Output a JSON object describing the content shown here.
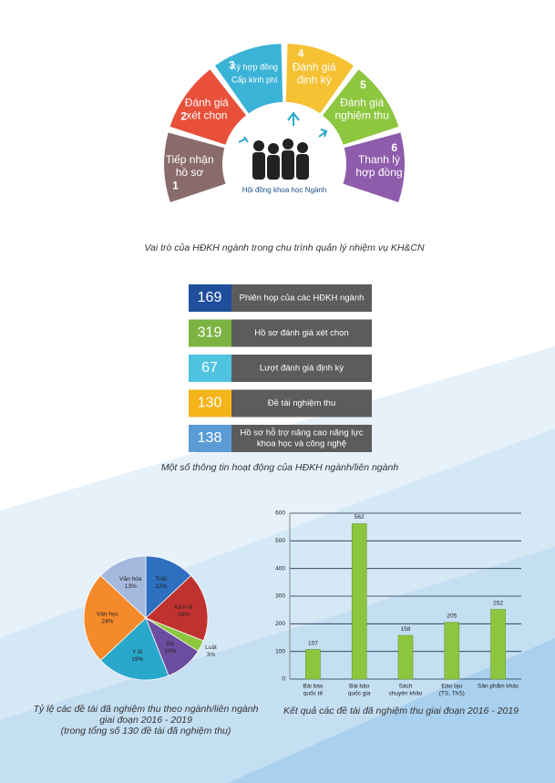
{
  "cycle": {
    "center": "Hội đồng khoa học Ngành",
    "steps": [
      {
        "number": "1",
        "lines": [
          "Tiếp nhận",
          "hồ sơ"
        ]
      },
      {
        "number": "2",
        "lines": [
          "Đánh giá",
          "xét chọn"
        ]
      },
      {
        "number": "3",
        "lines": [
          "Ký hợp đồng",
          "Cấp kinh phí"
        ]
      },
      {
        "number": "4",
        "lines": [
          "Đánh giá",
          "định kỳ"
        ]
      },
      {
        "number": "5",
        "lines": [
          "Đánh giá",
          "nghiệm thu"
        ]
      },
      {
        "number": "6",
        "lines": [
          "Thanh lý",
          "hợp đồng"
        ]
      }
    ],
    "caption": "Vai trò của HĐKH ngành trong chu trình quản lý nhiệm vụ KH&CN"
  },
  "stats": {
    "rows": [
      {
        "value": "169",
        "lines": [
          "Phiên họp của các HĐKH ngành"
        ]
      },
      {
        "value": "319",
        "lines": [
          "Hồ sơ đánh giá xét chọn"
        ]
      },
      {
        "value": "67",
        "lines": [
          "Lượt đánh giá định kỳ"
        ]
      },
      {
        "value": "130",
        "lines": [
          "Đề tài nghiệm thu"
        ]
      },
      {
        "value": "138",
        "lines": [
          "Hồ sơ hỗ trợ nâng cao năng lực",
          "khoa học và công nghệ"
        ]
      }
    ],
    "caption": "Một số thông tin hoạt động của HĐKH ngành/liên ngành"
  },
  "chart_data": [
    {
      "type": "pie",
      "caption": [
        "Tỷ lệ các đề tài đã nghiệm thu theo ngành/liên ngành",
        "giai đoạn 2016 - 2019",
        "(trong tổng số 130 đề tài đã nghiệm thu)"
      ],
      "categories": [
        "Triết",
        "Kinh tế",
        "Luật",
        "Sử",
        "Y tế",
        "Văn học",
        "Văn hóa"
      ],
      "values": [
        13,
        18,
        3,
        10,
        19,
        24,
        13
      ],
      "value_labels": [
        "13%",
        "18%",
        "3%",
        "10%",
        "19%",
        "24%",
        "13%"
      ],
      "colors": [
        "#2e6fc0",
        "#c0322f",
        "#8dc63f",
        "#6b4c9e",
        "#2aa8cc",
        "#f58a2a",
        "#a4b9de"
      ]
    },
    {
      "type": "bar",
      "caption": "Kết quả các đề tài đã nghiệm thu giai đoạn 2016 - 2019",
      "categories": [
        [
          "Bài báo",
          "quốc tế"
        ],
        [
          "Bài báo",
          "quốc gia"
        ],
        [
          "Sách",
          "chuyên khảo"
        ],
        [
          "Đào tạo",
          "(TS, ThS)"
        ],
        [
          "Sản phẩm khác"
        ]
      ],
      "values": [
        107,
        562,
        158,
        205,
        252
      ],
      "color": "#8cc63f",
      "ylim": [
        0,
        600
      ],
      "yticks": [
        0,
        100,
        200,
        300,
        400,
        500,
        600
      ],
      "grid": true
    }
  ]
}
